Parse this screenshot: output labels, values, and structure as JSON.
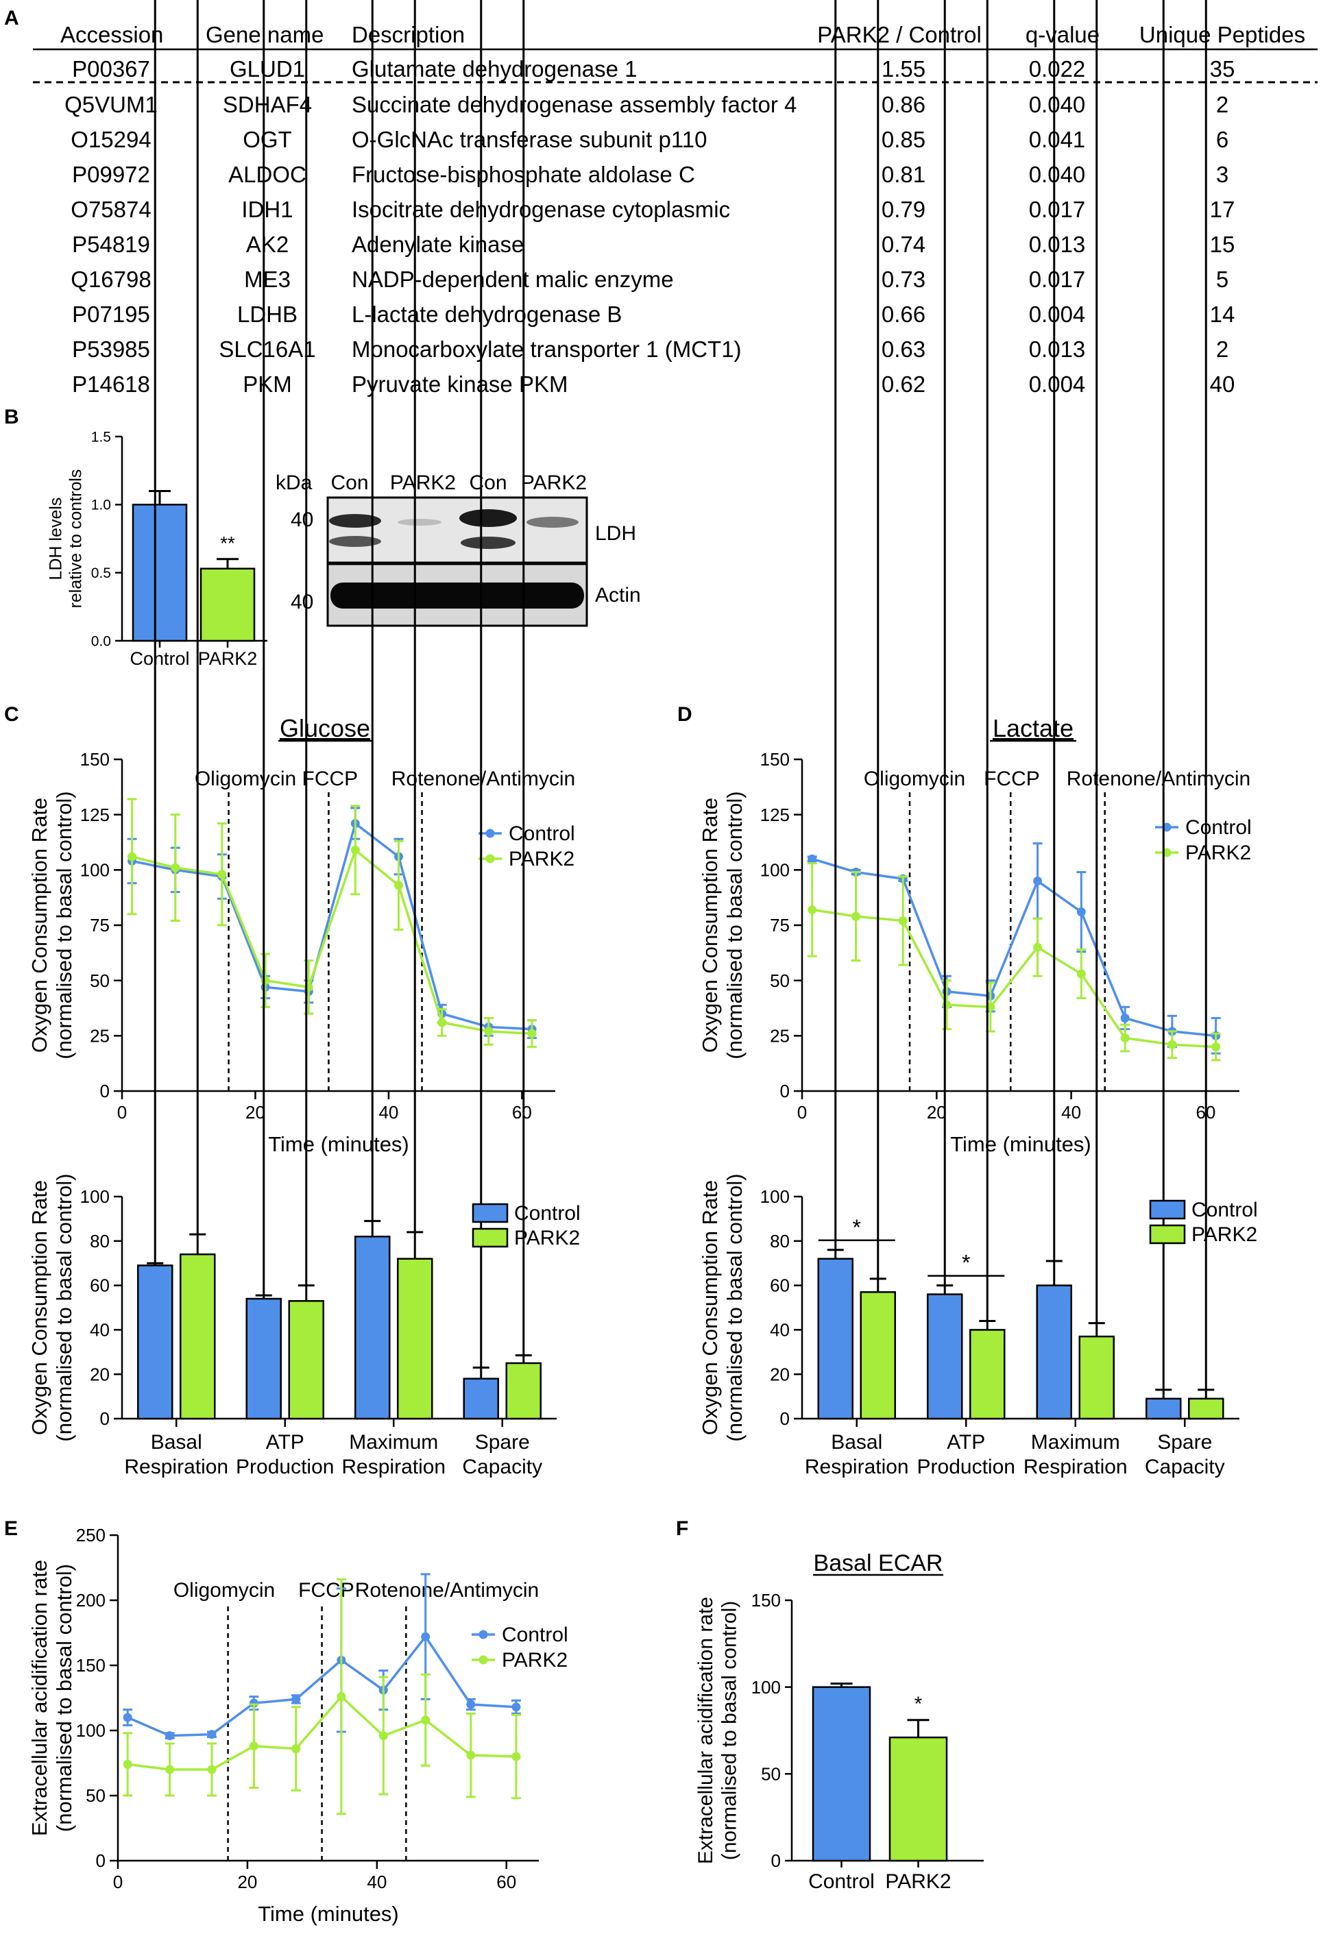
{
  "colors": {
    "control": "#4f8fea",
    "park2": "#a6ec3a",
    "axis": "#000000",
    "dashed": "#000000"
  },
  "panel_labels": {
    "a": "A",
    "b": "B",
    "c": "C",
    "d": "D",
    "e": "E",
    "f": "F"
  },
  "table": {
    "headers": [
      "Accession",
      "Gene name",
      "Description",
      "PARK2 / Control",
      "q-value",
      "Unique Peptides"
    ],
    "rows": [
      [
        "P00367",
        "GLUD1",
        "Glutamate dehydrogenase 1",
        "1.55",
        "0.022",
        "35"
      ],
      [
        "Q5VUM1",
        "SDHAF4",
        "Succinate dehydrogenase assembly factor 4",
        "0.86",
        "0.040",
        "2"
      ],
      [
        "O15294",
        "OGT",
        "O-GlcNAc transferase subunit p110",
        "0.85",
        "0.041",
        "6"
      ],
      [
        "P09972",
        "ALDOC",
        "Fructose-bisphosphate aldolase C",
        "0.81",
        "0.040",
        "3"
      ],
      [
        "O75874",
        "IDH1",
        "Isocitrate dehydrogenase cytoplasmic",
        "0.79",
        "0.017",
        "17"
      ],
      [
        "P54819",
        "AK2",
        "Adenylate kinase",
        "0.74",
        "0.013",
        "15"
      ],
      [
        "Q16798",
        "ME3",
        "NADP-dependent malic enzyme",
        "0.73",
        "0.017",
        "5"
      ],
      [
        "P07195",
        "LDHB",
        "L-lactate dehydrogenase B",
        "0.66",
        "0.004",
        "14"
      ],
      [
        "P53985",
        "SLC16A1",
        "Monocarboxylate transporter 1 (MCT1)",
        "0.63",
        "0.013",
        "2"
      ],
      [
        "P14618",
        "PKM",
        "Pyruvate kinase PKM",
        "0.62",
        "0.004",
        "40"
      ]
    ]
  },
  "blot": {
    "kda_label": "kDa",
    "lanes": [
      "Con",
      "PARK2",
      "Con",
      "PARK2"
    ],
    "markers": [
      "40",
      "40"
    ],
    "bands": [
      "LDH",
      "Actin"
    ]
  },
  "chart_data": [
    {
      "id": "b_ldh",
      "type": "bar",
      "ylabel": [
        "LDH levels",
        "relative to controls"
      ],
      "ylim": [
        0,
        1.5
      ],
      "yticks": [
        "0.0",
        "0.5",
        "1.0",
        "1.5"
      ],
      "categories": [
        "Control",
        "PARK2"
      ],
      "values": [
        1.0,
        0.53
      ],
      "errors": [
        0.1,
        0.07
      ],
      "annotations": [
        {
          "category": 1,
          "text": "**"
        }
      ]
    },
    {
      "id": "c_line",
      "type": "line",
      "title": "Glucose",
      "xlabel": "Time (minutes)",
      "ylabel": [
        "Oxygen Consumption Rate",
        "(normalised to basal control)"
      ],
      "xlim": [
        0,
        65
      ],
      "ylim": [
        0,
        150
      ],
      "xticks": [
        "0",
        "20",
        "40",
        "60"
      ],
      "yticks": [
        "0",
        "25",
        "50",
        "75",
        "100",
        "125",
        "150"
      ],
      "injections": [
        {
          "x": 16,
          "label": "Oligomycin FCCP"
        },
        {
          "x": 31,
          "label": ""
        },
        {
          "x": 45,
          "label": "Rotenone/Antimycin"
        }
      ],
      "x": [
        1.5,
        8,
        15,
        21.5,
        28,
        35,
        41.5,
        48,
        55,
        61.5
      ],
      "series": [
        {
          "name": "Control",
          "values": [
            104,
            100,
            97,
            47,
            45,
            121,
            106,
            35,
            29,
            28
          ],
          "errors": [
            10,
            10,
            10,
            5,
            5,
            7,
            8,
            4,
            4,
            4
          ]
        },
        {
          "name": "PARK2",
          "values": [
            106,
            101,
            98,
            50,
            47,
            109,
            93,
            31,
            27,
            26
          ],
          "errors": [
            26,
            24,
            23,
            12,
            12,
            20,
            20,
            6,
            6,
            6
          ]
        }
      ]
    },
    {
      "id": "c_bar",
      "type": "bar",
      "ylabel": [
        "Oxygen Consumption Rate",
        "(normalised to basal control)"
      ],
      "ylim": [
        0,
        100
      ],
      "yticks": [
        "0",
        "20",
        "40",
        "60",
        "80",
        "100"
      ],
      "categories": [
        [
          "Basal",
          "Respiration"
        ],
        [
          "ATP",
          "Production"
        ],
        [
          "Maximum",
          "Respiration"
        ],
        [
          "Spare",
          "Capacity"
        ]
      ],
      "series": [
        {
          "name": "Control",
          "values": [
            69,
            54,
            82,
            18
          ],
          "errors": [
            1,
            1.5,
            7,
            5
          ]
        },
        {
          "name": "PARK2",
          "values": [
            74,
            53,
            72,
            25
          ],
          "errors": [
            9,
            7,
            12,
            3.5
          ]
        }
      ],
      "annotations": []
    },
    {
      "id": "d_line",
      "type": "line",
      "title": "Lactate",
      "xlabel": "Time (minutes)",
      "ylabel": [
        "Oxygen Consumption Rate",
        "(normalised to basal control)"
      ],
      "xlim": [
        0,
        65
      ],
      "ylim": [
        0,
        150
      ],
      "xticks": [
        "0",
        "20",
        "40",
        "60"
      ],
      "yticks": [
        "0",
        "25",
        "50",
        "75",
        "100",
        "125",
        "150"
      ],
      "injections": [
        {
          "x": 16,
          "label": "Oligomycin"
        },
        {
          "x": 31,
          "label": "FCCP"
        },
        {
          "x": 45,
          "label": "Rotenone/Antimycin"
        }
      ],
      "x": [
        1.5,
        8,
        15,
        21.5,
        28,
        35,
        41.5,
        48,
        55,
        61.5
      ],
      "series": [
        {
          "name": "Control",
          "values": [
            105,
            99,
            96,
            45,
            43,
            95,
            81,
            33,
            27,
            25
          ],
          "errors": [
            1,
            1,
            1,
            7,
            7,
            17,
            18,
            5,
            7,
            8
          ]
        },
        {
          "name": "PARK2",
          "values": [
            82,
            79,
            77,
            39,
            38,
            65,
            53,
            24,
            21,
            20
          ],
          "errors": [
            21,
            20,
            20,
            11,
            11,
            13,
            11,
            6,
            6,
            6
          ]
        }
      ]
    },
    {
      "id": "d_bar",
      "type": "bar",
      "ylabel": [
        "Oxygen Consumption Rate",
        "(normalised to basal control)"
      ],
      "ylim": [
        0,
        100
      ],
      "yticks": [
        "0",
        "20",
        "40",
        "60",
        "80",
        "100"
      ],
      "categories": [
        [
          "Basal",
          "Respiration"
        ],
        [
          "ATP",
          "Production"
        ],
        [
          "Maximum",
          "Respiration"
        ],
        [
          "Spare",
          "Capacity"
        ]
      ],
      "series": [
        {
          "name": "Control",
          "values": [
            72,
            56,
            60,
            9
          ],
          "errors": [
            4,
            4,
            11,
            4
          ]
        },
        {
          "name": "PARK2",
          "values": [
            57,
            40,
            37,
            9
          ],
          "errors": [
            6,
            4,
            6,
            4
          ]
        }
      ],
      "annotations": [
        {
          "category": 0,
          "text": "*"
        },
        {
          "category": 1,
          "text": "*"
        }
      ]
    },
    {
      "id": "e_line",
      "type": "line",
      "xlabel": "Time (minutes)",
      "ylabel": [
        "Extracellular acidification rate",
        "(normalised to basal control)"
      ],
      "xlim": [
        0,
        65
      ],
      "ylim": [
        0,
        250
      ],
      "xticks": [
        "0",
        "20",
        "40",
        "60"
      ],
      "yticks": [
        "0",
        "50",
        "100",
        "150",
        "200",
        "250"
      ],
      "injections": [
        {
          "x": 17,
          "label": "Oligomycin"
        },
        {
          "x": 31.5,
          "label": "FCCP"
        },
        {
          "x": 44.5,
          "label": "Rotenone/Antimycin"
        }
      ],
      "x": [
        1.5,
        8,
        14.5,
        21,
        27.5,
        34.5,
        41,
        47.5,
        54.5,
        61.5
      ],
      "series": [
        {
          "name": "Control",
          "values": [
            110,
            96,
            97,
            121,
            124,
            154,
            131,
            172,
            120,
            118
          ],
          "errors": [
            6,
            2,
            2,
            5,
            3,
            55,
            15,
            48,
            4,
            5
          ]
        },
        {
          "name": "PARK2",
          "values": [
            74,
            70,
            70,
            88,
            86,
            126,
            96,
            108,
            81,
            80
          ],
          "errors": [
            24,
            20,
            20,
            32,
            32,
            90,
            45,
            35,
            32,
            32
          ]
        }
      ]
    },
    {
      "id": "f_bar",
      "type": "bar",
      "title": "Basal ECAR",
      "ylabel": [
        "Extracellular acidification rate",
        "(normalised to basal control)"
      ],
      "ylim": [
        0,
        150
      ],
      "yticks": [
        "0",
        "50",
        "100",
        "150"
      ],
      "categories": [
        "Control",
        "PARK2"
      ],
      "values": [
        100,
        71
      ],
      "errors": [
        2,
        10
      ],
      "annotations": [
        {
          "category": 1,
          "text": "*"
        }
      ]
    }
  ]
}
